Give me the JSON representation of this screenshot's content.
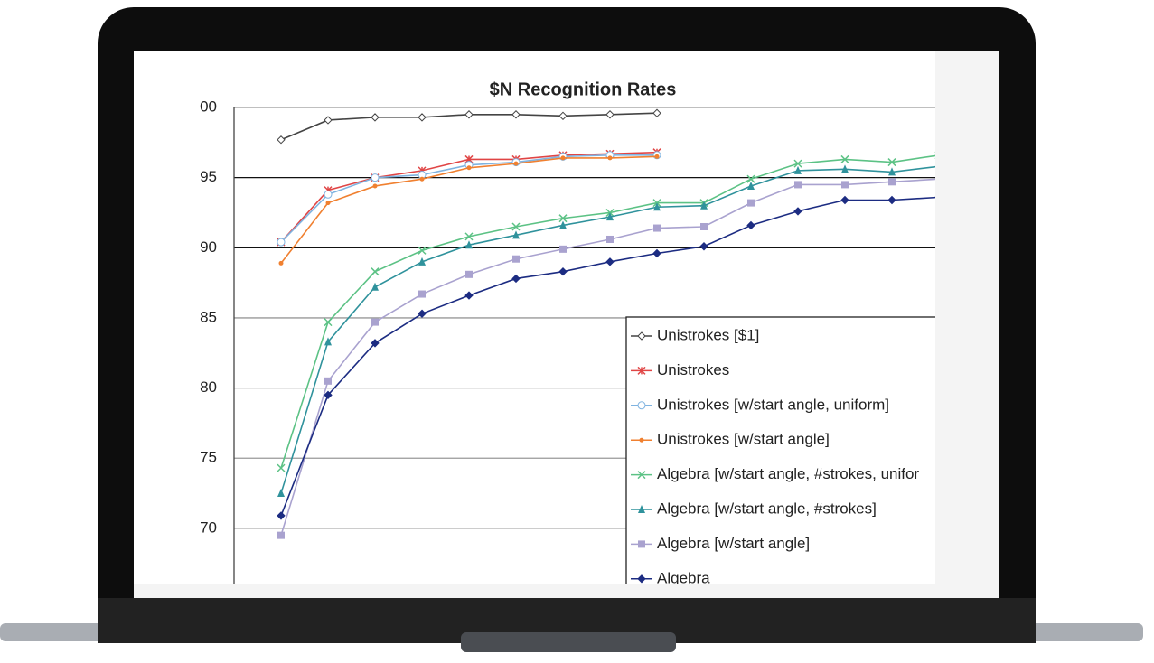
{
  "chart_data": {
    "type": "line",
    "title": "$N Recognition Rates",
    "categories": [
      null,
      null,
      null,
      null,
      null,
      null,
      null,
      null,
      null,
      null,
      null,
      null,
      null,
      null,
      null
    ],
    "ylim": [
      66,
      100
    ],
    "yticks": [
      {
        "value": 100,
        "label": "00"
      },
      95,
      90,
      85,
      80,
      75,
      70
    ],
    "grid": true,
    "series": [
      {
        "name": "Unistrokes [$1]",
        "color": "#444444",
        "marker": "diamond-open",
        "values": [
          97.7,
          99.1,
          99.3,
          99.3,
          99.5,
          99.5,
          99.4,
          99.5,
          99.6,
          null,
          null,
          null,
          null,
          null,
          null
        ]
      },
      {
        "name": "Unistrokes",
        "color": "#e04545",
        "marker": "star",
        "values": [
          90.4,
          94.1,
          95.0,
          95.5,
          96.3,
          96.3,
          96.6,
          96.7,
          96.8,
          null,
          null,
          null,
          null,
          null,
          null
        ]
      },
      {
        "name": "Unistrokes [w/start angle, uniform]",
        "color": "#7fb3e0",
        "marker": "circle-open",
        "values": [
          90.4,
          93.8,
          95.0,
          95.2,
          95.9,
          96.1,
          96.5,
          96.6,
          96.6,
          null,
          null,
          null,
          null,
          null,
          null
        ]
      },
      {
        "name": "Unistrokes [w/start angle]",
        "color": "#f08030",
        "marker": "dot",
        "values": [
          88.9,
          93.2,
          94.4,
          94.9,
          95.7,
          96.0,
          96.4,
          96.4,
          96.5,
          null,
          null,
          null,
          null,
          null,
          null
        ]
      },
      {
        "name": "Algebra [w/start angle, #strokes, unifor",
        "color": "#5cc285",
        "marker": "x",
        "values": [
          74.3,
          84.7,
          88.3,
          89.8,
          90.8,
          91.5,
          92.1,
          92.5,
          93.2,
          93.2,
          94.9,
          96.0,
          96.3,
          96.1,
          96.6
        ]
      },
      {
        "name": "Algebra [w/start angle, #strokes]",
        "color": "#2f929c",
        "marker": "triangle",
        "values": [
          72.5,
          83.3,
          87.2,
          89.0,
          90.2,
          90.9,
          91.6,
          92.2,
          92.9,
          93.0,
          94.4,
          95.5,
          95.6,
          95.4,
          95.8
        ]
      },
      {
        "name": "Algebra [w/start angle]",
        "color": "#a9a2cf",
        "marker": "square",
        "values": [
          69.5,
          80.5,
          84.7,
          86.7,
          88.1,
          89.2,
          89.9,
          90.6,
          91.4,
          91.5,
          93.2,
          94.5,
          94.5,
          94.7,
          94.9
        ]
      },
      {
        "name": "Algebra",
        "color": "#1c2c82",
        "marker": "diamond",
        "values": [
          70.9,
          79.5,
          83.2,
          85.3,
          86.6,
          87.8,
          88.3,
          89.0,
          89.6,
          90.1,
          91.6,
          92.6,
          93.4,
          93.4,
          93.6
        ]
      }
    ]
  }
}
